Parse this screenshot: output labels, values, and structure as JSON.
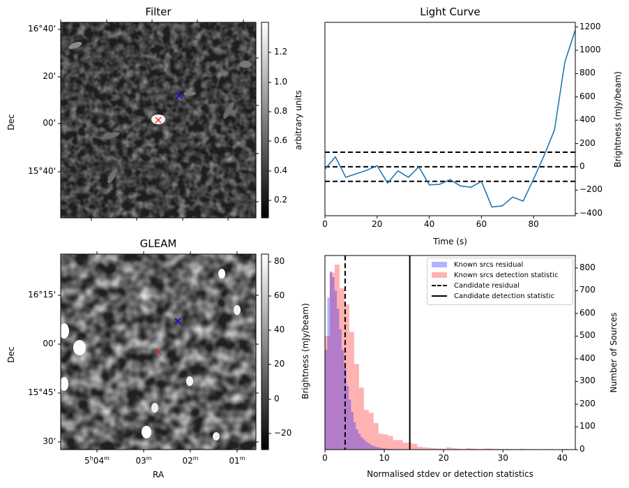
{
  "figure": {
    "panels": {
      "filter": {
        "title": "Filter",
        "ylabel": "Dec",
        "yticks": [
          "16°40'",
          "20'",
          "00'",
          "15°40'"
        ],
        "colorbar_label": "arbitrary units",
        "colorbar_ticks": [
          "1.2",
          "1.0",
          "0.8",
          "0.6",
          "0.4",
          "0.2"
        ],
        "colorbar_range": [
          0.1,
          1.38
        ],
        "markers": [
          {
            "name": "candidate",
            "color": "#ff0000",
            "symbol": "x"
          },
          {
            "name": "reference",
            "color": "#0000ff",
            "symbol": "x"
          }
        ]
      },
      "gleam": {
        "title": "GLEAM",
        "ylabel": "Dec",
        "xlabel": "RA",
        "yticks": [
          "16°15'",
          "00'",
          "15°45'",
          "30'"
        ],
        "xticks": [
          {
            "main": "5",
            "sup1": "h",
            "main2": "04",
            "sup2": "m"
          },
          {
            "main": "",
            "sup1": "",
            "main2": "03",
            "sup2": "m"
          },
          {
            "main": "",
            "sup1": "",
            "main2": "02",
            "sup2": "m"
          },
          {
            "main": "",
            "sup1": "",
            "main2": "01",
            "sup2": "m"
          }
        ],
        "colorbar_label": "Brightness (mJy/beam)",
        "colorbar_ticks": [
          "80",
          "60",
          "40",
          "20",
          "0",
          "−20"
        ],
        "colorbar_range": [
          -25,
          88
        ],
        "markers": [
          {
            "name": "candidate",
            "color": "#ff0000",
            "symbol": "x"
          },
          {
            "name": "reference",
            "color": "#0000ff",
            "symbol": "x"
          }
        ]
      }
    }
  },
  "chart_data": [
    {
      "type": "line",
      "title": "Light Curve",
      "xlabel": "Time (s)",
      "ylabel": "Brightness (mJy/beam)",
      "xlim": [
        0,
        96
      ],
      "ylim": [
        -420,
        1240
      ],
      "xticks": [
        0,
        20,
        40,
        60,
        80
      ],
      "yticks": [
        1200,
        1000,
        800,
        600,
        400,
        200,
        0,
        -200,
        -400
      ],
      "ytick_labels": [
        "1200",
        "1000",
        "800",
        "600",
        "400",
        "200",
        "0",
        "−200",
        "−400"
      ],
      "y_axis_side": "right",
      "series": [
        {
          "name": "light curve",
          "color": "#1f77b4",
          "x": [
            0,
            4,
            8,
            12,
            16,
            20,
            24,
            28,
            32,
            36,
            40,
            44,
            48,
            52,
            56,
            60,
            64,
            68,
            72,
            76,
            80,
            84,
            88,
            92,
            96
          ],
          "y": [
            -20,
            85,
            -90,
            -60,
            -30,
            10,
            -140,
            -35,
            -90,
            0,
            -155,
            -150,
            -110,
            -165,
            -175,
            -125,
            -345,
            -335,
            -260,
            -295,
            -105,
            95,
            315,
            900,
            1175
          ]
        }
      ],
      "hlines": [
        {
          "y": 125,
          "style": "dashed",
          "color": "#000000"
        },
        {
          "y": 0,
          "style": "dashed",
          "color": "#000000"
        },
        {
          "y": -125,
          "style": "dashed",
          "color": "#000000"
        }
      ]
    },
    {
      "type": "histogram",
      "xlabel": "Normalised stdev or detection statistics",
      "ylabel": "Number of Sources",
      "xlim": [
        0,
        42.2
      ],
      "ylim": [
        0,
        855
      ],
      "xticks": [
        0,
        10,
        20,
        30,
        40
      ],
      "yticks": [
        0,
        100,
        200,
        300,
        400,
        500,
        600,
        700,
        800
      ],
      "y_axis_side": "right",
      "legend_position": "top-right",
      "series": [
        {
          "name": "Known srcs residual",
          "color": "#0000ff",
          "alpha": 0.3,
          "bin_width": 0.4,
          "bin_start": 0,
          "values": [
            440,
            670,
            785,
            760,
            700,
            620,
            530,
            440,
            360,
            280,
            220,
            165,
            120,
            90,
            70,
            55,
            45,
            35,
            28,
            20,
            16,
            12,
            10,
            8,
            6,
            5,
            4,
            3,
            3,
            2,
            2,
            2,
            1,
            1,
            1,
            1
          ]
        },
        {
          "name": "Known srcs detection statistic",
          "color": "#ff0000",
          "alpha": 0.3,
          "bin_width": 0.82,
          "bin_start": 0,
          "values": [
            500,
            780,
            815,
            710,
            640,
            518,
            377,
            273,
            175,
            162,
            117,
            70,
            67,
            60,
            42,
            42,
            30,
            30,
            25,
            12,
            10,
            8,
            6,
            5,
            4,
            10,
            6,
            4,
            3,
            6,
            4,
            3,
            3,
            5,
            4,
            3,
            2,
            3,
            2,
            2,
            3,
            2,
            2,
            2,
            1,
            2,
            2,
            1,
            1,
            3,
            1
          ]
        }
      ],
      "vlines": [
        {
          "name": "Candidate residual",
          "x": 3.4,
          "style": "dashed",
          "color": "#000000"
        },
        {
          "name": "Candidate detection statistic",
          "x": 14.3,
          "style": "solid",
          "color": "#000000"
        }
      ],
      "legend": [
        "Known srcs residual",
        "Known srcs detection statistic",
        "Candidate residual",
        "Candidate detection statistic"
      ]
    }
  ]
}
